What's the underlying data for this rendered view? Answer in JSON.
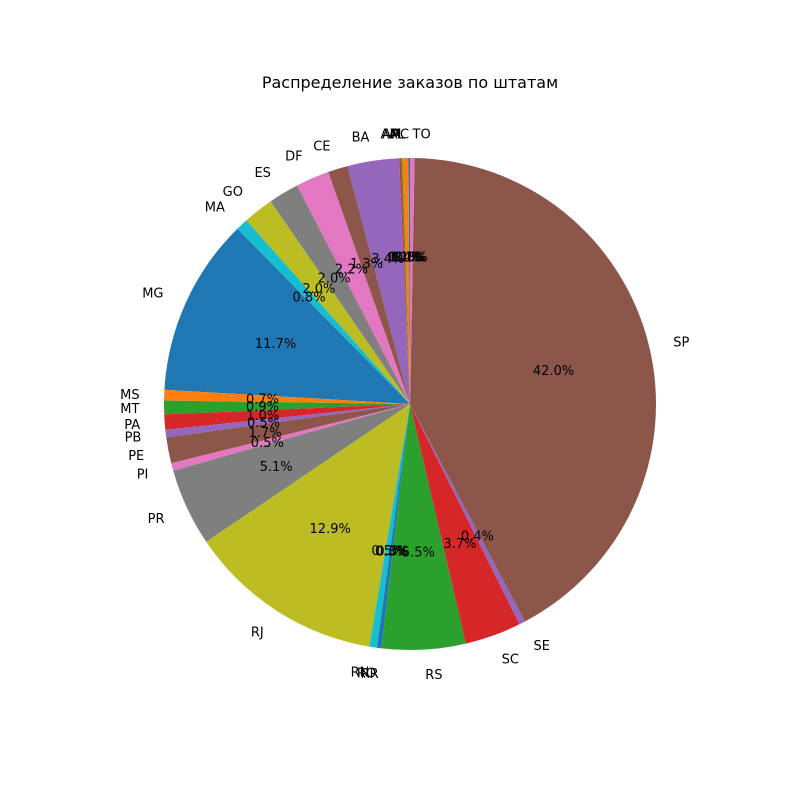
{
  "chart_data": {
    "type": "pie",
    "title": "Распределение заказов по штатам",
    "categories": [
      "AC",
      "AL",
      "AM",
      "AP",
      "BA",
      "CE",
      "DF",
      "ES",
      "GO",
      "MA",
      "MG",
      "MS",
      "MT",
      "PA",
      "PB",
      "PE",
      "PI",
      "PR",
      "RJ",
      "RN",
      "RO",
      "RR",
      "RS",
      "SC",
      "SE",
      "SP",
      "TO"
    ],
    "values": [
      0.1,
      0.4,
      0.1,
      0.1,
      3.4,
      1.3,
      2.2,
      2.0,
      2.0,
      0.8,
      11.7,
      0.7,
      0.9,
      1.0,
      0.5,
      1.7,
      0.5,
      5.1,
      12.9,
      0.5,
      0.3,
      0.0,
      5.5,
      3.7,
      0.4,
      42.0,
      0.3
    ],
    "pct_labels": [
      "0.1%",
      "0.4%",
      "0.1%",
      "0.1%",
      "3.4%",
      "1.3%",
      "2.2%",
      "2.0%",
      "2.0%",
      "0.8%",
      "11.7%",
      "0.7%",
      "0.9%",
      "1.0%",
      "0.5%",
      "1.7%",
      "0.5%",
      "5.1%",
      "12.9%",
      "0.5%",
      "0.3%",
      "0.0%",
      "5.5%",
      "3.7%",
      "0.4%",
      "42.0%",
      "0.3%"
    ],
    "start_angle": 90,
    "direction": "counterclockwise",
    "colors": [
      "#1f77b4",
      "#ff7f0e",
      "#2ca02c",
      "#d62728",
      "#9467bd",
      "#8c564b",
      "#e377c2",
      "#7f7f7f",
      "#bcbd22",
      "#17becf"
    ]
  }
}
